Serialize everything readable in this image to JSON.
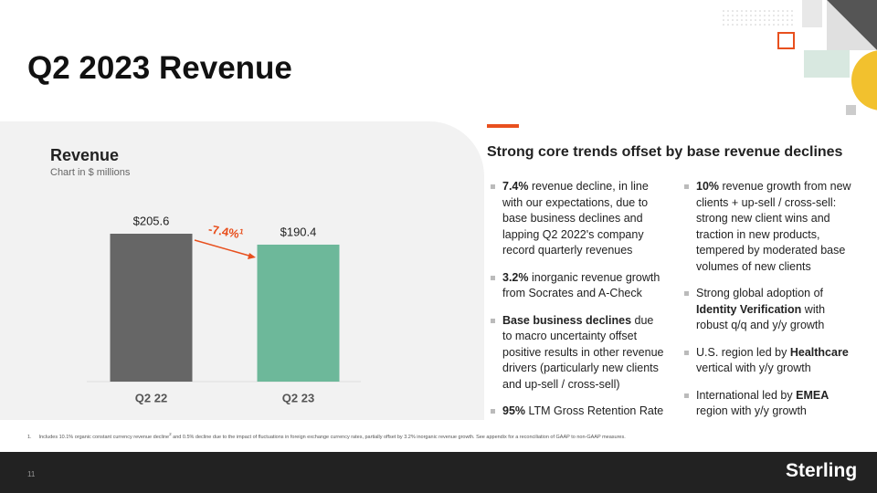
{
  "title": "Q2 2023 Revenue",
  "chart_data": {
    "type": "bar",
    "title": "Revenue",
    "subtitle": "Chart in $ millions",
    "categories": [
      "Q2 22",
      "Q2 23"
    ],
    "values": [
      205.6,
      190.4
    ],
    "value_labels": [
      "$205.6",
      "$190.4"
    ],
    "colors": [
      "#666666",
      "#6db89a"
    ],
    "annotation": {
      "text": "-7.4%",
      "footnote": "1",
      "color": "#e8501e"
    }
  },
  "panel": {
    "heading": "Strong core trends offset by base revenue declines",
    "columns": [
      [
        [
          {
            "text": "7.4%",
            "bold": true
          },
          {
            "text": " revenue decline, in line with our expectations, due to base business declines and lapping Q2 2022's company record quarterly revenues"
          }
        ],
        [
          {
            "text": "3.2%",
            "bold": true
          },
          {
            "text": " inorganic revenue growth from Socrates and A-Check"
          }
        ],
        [
          {
            "text": "Base business declines",
            "bold": true
          },
          {
            "text": " due to macro uncertainty offset positive results in other revenue drivers (particularly new clients and up-sell / cross-sell)"
          }
        ],
        [
          {
            "text": "95%",
            "bold": true
          },
          {
            "text": " LTM Gross Retention Rate"
          }
        ]
      ],
      [
        [
          {
            "text": "10%",
            "bold": true
          },
          {
            "text": " revenue growth from new clients + up-sell / cross-sell: strong new client wins and traction in new products, tempered by moderated base volumes of new clients"
          }
        ],
        [
          {
            "text": "Strong global adoption of "
          },
          {
            "text": "Identity Verification",
            "bold": true
          },
          {
            "text": " with robust q/q and y/y growth"
          }
        ],
        [
          {
            "text": "U.S. region led by "
          },
          {
            "text": "Healthcare",
            "bold": true
          },
          {
            "text": " vertical with y/y growth"
          }
        ],
        [
          {
            "text": "International led by "
          },
          {
            "text": "EMEA",
            "bold": true
          },
          {
            "text": " region with y/y growth"
          }
        ]
      ]
    ]
  },
  "footnote": {
    "number": "1.",
    "text": "Includes 10.1% organic constant currency revenue decline",
    "superscript": "2",
    "rest": " and 0.5% decline due to the impact of fluctuations in foreign exchange currency rates, partially offset by 3.2% inorganic revenue growth. See appendix for a reconciliation of GAAP to non-GAAP measures."
  },
  "footer": {
    "page": "11",
    "logo": "Sterling"
  }
}
